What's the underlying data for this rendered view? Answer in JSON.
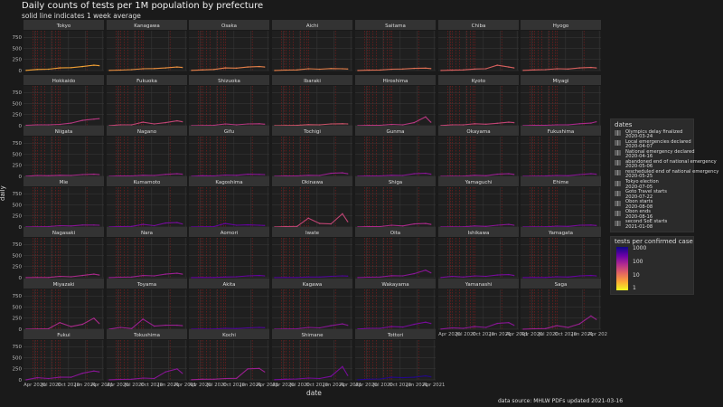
{
  "title": "Daily counts of tests per 1M population by prefecture",
  "subtitle": "solid line indicates 1 week average",
  "xlabel": "date",
  "ylabel": "daily",
  "source_note": "data source: MHLW PDFs updated  2021-03-16",
  "chart_data": {
    "type": "line",
    "facet_grid": {
      "columns": 7,
      "rows": 7
    },
    "x": [
      "2020-02",
      "2020-04",
      "2020-06",
      "2020-08",
      "2020-10",
      "2020-12",
      "2021-02",
      "2021-03"
    ],
    "x_ticks": [
      "Apr 2020",
      "Jul 2020",
      "Oct 2020",
      "Jan 2021",
      "Apr 2021"
    ],
    "x_ticks_dates": [
      "2020-04-01",
      "2020-07-01",
      "2020-10-01",
      "2021-01-01",
      "2021-04-01"
    ],
    "x_range": [
      "2020-02-01",
      "2021-04-10"
    ],
    "ylim": [
      0,
      900
    ],
    "y_ticks": [
      0,
      250,
      500,
      750
    ],
    "grid": true,
    "line_style": "solid",
    "series": [
      {
        "name": "Tokyo",
        "values": [
          5,
          25,
          30,
          60,
          65,
          90,
          120,
          110
        ]
      },
      {
        "name": "Kanagawa",
        "values": [
          5,
          10,
          20,
          40,
          45,
          60,
          80,
          70
        ]
      },
      {
        "name": "Osaka",
        "values": [
          5,
          15,
          25,
          60,
          55,
          80,
          90,
          80
        ]
      },
      {
        "name": "Aichi",
        "values": [
          3,
          10,
          15,
          40,
          30,
          45,
          40,
          35
        ]
      },
      {
        "name": "Saitama",
        "values": [
          3,
          8,
          12,
          30,
          35,
          50,
          55,
          45
        ]
      },
      {
        "name": "Chiba",
        "values": [
          3,
          8,
          15,
          35,
          40,
          120,
          80,
          60
        ]
      },
      {
        "name": "Hyogo",
        "values": [
          5,
          15,
          20,
          40,
          35,
          60,
          70,
          60
        ]
      },
      {
        "name": "Hokkaido",
        "values": [
          10,
          20,
          20,
          30,
          60,
          120,
          150,
          160
        ]
      },
      {
        "name": "Fukuoka",
        "values": [
          3,
          20,
          20,
          80,
          40,
          70,
          110,
          90
        ]
      },
      {
        "name": "Shizuoka",
        "values": [
          3,
          5,
          10,
          40,
          20,
          40,
          45,
          35
        ]
      },
      {
        "name": "Ibaraki",
        "values": [
          3,
          5,
          10,
          25,
          20,
          40,
          45,
          40
        ]
      },
      {
        "name": "Hiroshima",
        "values": [
          3,
          10,
          10,
          30,
          20,
          70,
          200,
          80
        ]
      },
      {
        "name": "Kyoto",
        "values": [
          5,
          20,
          20,
          45,
          35,
          55,
          80,
          70
        ]
      },
      {
        "name": "Miyagi",
        "values": [
          3,
          10,
          10,
          20,
          20,
          45,
          60,
          90
        ]
      },
      {
        "name": "Niigata",
        "values": [
          3,
          20,
          15,
          25,
          20,
          40,
          50,
          40
        ]
      },
      {
        "name": "Nagano",
        "values": [
          3,
          10,
          10,
          25,
          20,
          45,
          60,
          50
        ]
      },
      {
        "name": "Gifu",
        "values": [
          3,
          15,
          10,
          30,
          25,
          50,
          45,
          40
        ]
      },
      {
        "name": "Tochigi",
        "values": [
          3,
          10,
          10,
          25,
          20,
          70,
          80,
          60
        ]
      },
      {
        "name": "Gunma",
        "values": [
          3,
          10,
          10,
          25,
          20,
          60,
          70,
          50
        ]
      },
      {
        "name": "Okayama",
        "values": [
          3,
          5,
          5,
          25,
          15,
          50,
          60,
          45
        ]
      },
      {
        "name": "Fukushima",
        "values": [
          3,
          5,
          8,
          20,
          15,
          40,
          60,
          50
        ]
      },
      {
        "name": "Mie",
        "values": [
          3,
          5,
          10,
          30,
          25,
          45,
          45,
          40
        ]
      },
      {
        "name": "Kumamoto",
        "values": [
          3,
          10,
          15,
          60,
          30,
          90,
          100,
          70
        ]
      },
      {
        "name": "Kagoshima",
        "values": [
          3,
          5,
          10,
          80,
          40,
          50,
          40,
          35
        ]
      },
      {
        "name": "Okinawa",
        "values": [
          3,
          10,
          15,
          200,
          80,
          70,
          300,
          120
        ]
      },
      {
        "name": "Shiga",
        "values": [
          3,
          10,
          10,
          40,
          25,
          70,
          80,
          60
        ]
      },
      {
        "name": "Yamaguchi",
        "values": [
          3,
          5,
          5,
          25,
          15,
          40,
          60,
          40
        ]
      },
      {
        "name": "Ehime",
        "values": [
          3,
          5,
          5,
          20,
          15,
          40,
          45,
          35
        ]
      },
      {
        "name": "Nagasaki",
        "values": [
          3,
          5,
          5,
          30,
          20,
          50,
          80,
          60
        ]
      },
      {
        "name": "Nara",
        "values": [
          3,
          10,
          15,
          50,
          40,
          80,
          100,
          80
        ]
      },
      {
        "name": "Aomori",
        "values": [
          3,
          5,
          5,
          15,
          20,
          40,
          50,
          40
        ]
      },
      {
        "name": "Iwate",
        "values": [
          3,
          5,
          5,
          15,
          15,
          30,
          40,
          35
        ]
      },
      {
        "name": "Oita",
        "values": [
          3,
          10,
          15,
          45,
          40,
          90,
          170,
          110
        ]
      },
      {
        "name": "Ishikawa",
        "values": [
          5,
          30,
          15,
          40,
          30,
          60,
          70,
          50
        ]
      },
      {
        "name": "Yamagata",
        "values": [
          3,
          5,
          5,
          20,
          15,
          40,
          50,
          40
        ]
      },
      {
        "name": "Miyazaki",
        "values": [
          3,
          5,
          10,
          150,
          60,
          110,
          250,
          130
        ]
      },
      {
        "name": "Toyama",
        "values": [
          3,
          40,
          15,
          230,
          70,
          90,
          90,
          80
        ]
      },
      {
        "name": "Akita",
        "values": [
          3,
          5,
          5,
          20,
          15,
          30,
          40,
          35
        ]
      },
      {
        "name": "Kagawa",
        "values": [
          3,
          5,
          10,
          40,
          30,
          80,
          120,
          90
        ]
      },
      {
        "name": "Wakayama",
        "values": [
          5,
          20,
          20,
          60,
          50,
          110,
          160,
          130
        ]
      },
      {
        "name": "Yamanashi",
        "values": [
          5,
          30,
          20,
          60,
          40,
          130,
          150,
          90
        ]
      },
      {
        "name": "Saga",
        "values": [
          3,
          10,
          15,
          80,
          40,
          120,
          300,
          220
        ]
      },
      {
        "name": "Fukui",
        "values": [
          3,
          50,
          30,
          60,
          60,
          150,
          200,
          180
        ]
      },
      {
        "name": "Tokushima",
        "values": [
          3,
          10,
          15,
          40,
          30,
          180,
          250,
          150
        ]
      },
      {
        "name": "Kochi",
        "values": [
          5,
          15,
          15,
          30,
          35,
          250,
          260,
          180
        ]
      },
      {
        "name": "Shimane",
        "values": [
          5,
          15,
          20,
          40,
          30,
          80,
          300,
          100
        ]
      },
      {
        "name": "Tottori",
        "values": [
          5,
          15,
          20,
          60,
          50,
          60,
          90,
          70
        ]
      }
    ],
    "event_markers": [
      "2020-03-24",
      "2020-04-07",
      "2020-04-16",
      "2020-05-06",
      "2020-05-25",
      "2020-07-05",
      "2020-07-22",
      "2020-08-08",
      "2020-08-16",
      "2021-01-08"
    ],
    "legend_dates": {
      "title": "dates",
      "entries": [
        "Olympics delay finalized",
        "2020-03-24",
        "Local emergencies declared",
        "2020-04-07",
        "National emergency declared",
        "2020-04-16",
        "abandoned end of national emergency",
        "2020-05-06",
        "rescheduled end of national emergency",
        "2020-05-25",
        "Tokyo election",
        "2020-07-05",
        "Goto Travel starts",
        "2020-07-22",
        "Obon starts",
        "2020-08-08",
        "Obon ends",
        "2020-08-16",
        "second SoE starts",
        "2021-01-08"
      ]
    },
    "legend_color": {
      "title": "tests per confirmed case",
      "scale": "log",
      "ticks": [
        "1000",
        "100",
        "10",
        "1"
      ],
      "palette": [
        "#0d0887",
        "#6a00a8",
        "#b12a90",
        "#e16462",
        "#fca636",
        "#f0f921"
      ]
    },
    "series_color_rank": [
      0.8,
      0.75,
      0.7,
      0.7,
      0.65,
      0.6,
      0.6,
      0.45,
      0.5,
      0.45,
      0.55,
      0.45,
      0.5,
      0.4,
      0.4,
      0.35,
      0.3,
      0.35,
      0.3,
      0.35,
      0.3,
      0.3,
      0.25,
      0.2,
      0.5,
      0.4,
      0.3,
      0.25,
      0.4,
      0.35,
      0.2,
      0.15,
      0.3,
      0.25,
      0.2,
      0.4,
      0.35,
      0.15,
      0.3,
      0.25,
      0.3,
      0.35,
      0.3,
      0.3,
      0.35,
      0.25,
      0.05
    ]
  }
}
